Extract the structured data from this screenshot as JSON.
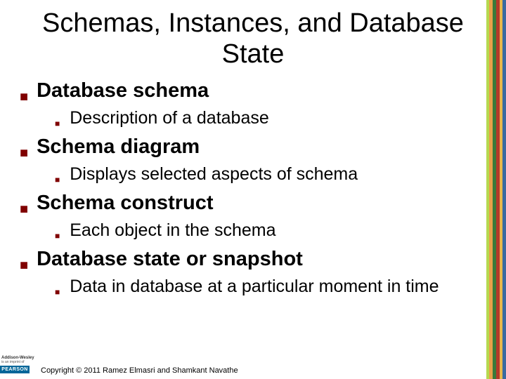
{
  "title": "Schemas, Instances, and Database State",
  "items": [
    {
      "heading": "Database schema",
      "sub": "Description of a database"
    },
    {
      "heading": "Schema diagram",
      "sub": "Displays selected aspects of schema"
    },
    {
      "heading": "Schema construct",
      "sub": "Each object in the schema"
    },
    {
      "heading": "Database state or snapshot",
      "sub": "Data in database at a particular moment in time"
    }
  ],
  "footer": {
    "publisher_line1": "Addison-Wesley",
    "publisher_line2": "is an imprint of",
    "brand": "PEARSON",
    "copyright": "Copyright © 2011 Ramez Elmasri and Shamkant Navathe"
  },
  "stripes": {
    "colors": [
      "#b6d94f",
      "#e8a04a",
      "#3a7a3a",
      "#b43a2a",
      "#e8b84a",
      "#3a6aa0"
    ],
    "widths": [
      4,
      5,
      5,
      5,
      4,
      5
    ]
  },
  "style": {
    "bullet_color": "#800000",
    "title_fontsize": 38,
    "l1_fontsize": 29,
    "l2_fontsize": 25,
    "background": "#ffffff"
  }
}
